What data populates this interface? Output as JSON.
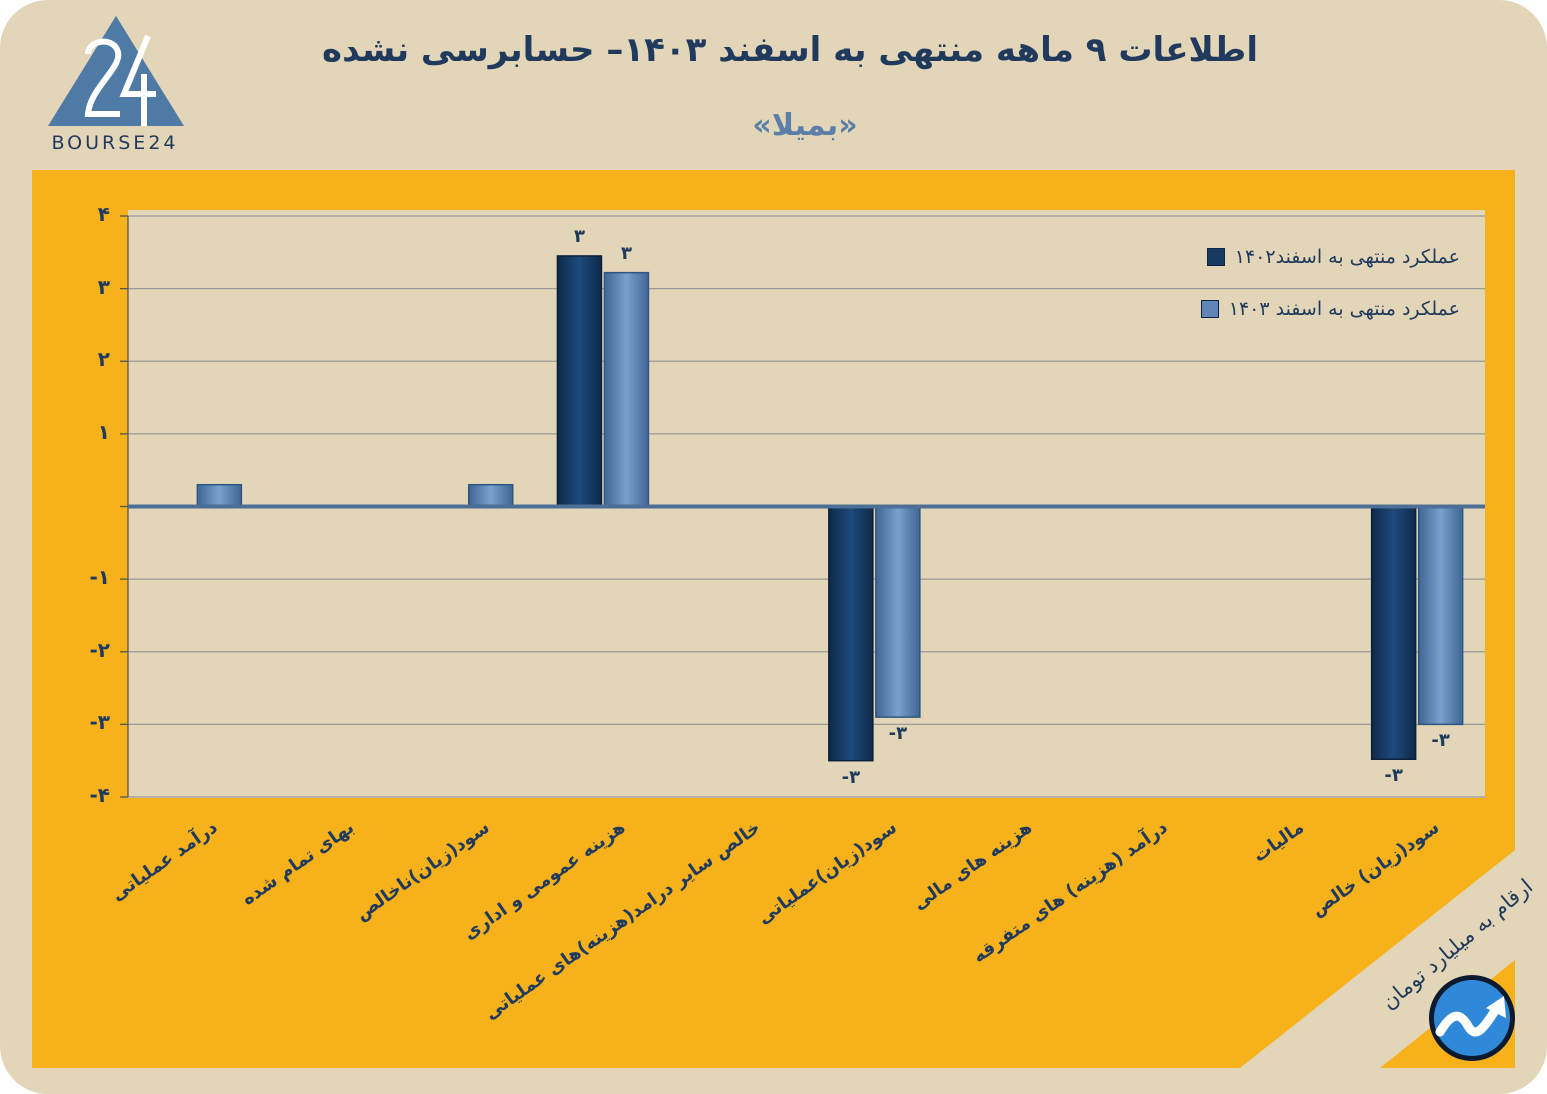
{
  "header": {
    "title": "اطلاعات ۹  ماهه منتهی به اسفند  ۱۴۰۳– حسابرسی نشده",
    "subtitle": "«بمیلا»",
    "logo_text": "BOURSE24"
  },
  "note": {
    "units": "ارقام به میلیارد تومان"
  },
  "colors": {
    "background": "#e2d5b8",
    "panel": "#f6b11b",
    "series_1402": "#173a63",
    "series_1403": "#5f86b7",
    "text": "#1f3a5c"
  },
  "chart_data": {
    "type": "bar",
    "title": "اطلاعات ۹  ماهه منتهی به اسفند  ۱۴۰۳– حسابرسی نشده",
    "ylim": [
      -4,
      4
    ],
    "y_ticks": [
      "۴",
      "۳",
      "۲",
      "۱",
      "",
      "-۱",
      "-۲",
      "-۳",
      "-۴"
    ],
    "y_tick_values": [
      4,
      3,
      2,
      1,
      0,
      -1,
      -2,
      -3,
      -4
    ],
    "grid": true,
    "legend_position": "top-right",
    "categories": [
      "درآمد عملیاتی",
      "بهای تمام شده",
      "سود(زیان)ناخالص",
      "هزینه عمومی و اداری",
      "خالص سایر درامد(هزینه)های عملیاتی",
      "سود(زیان)عملیاتی",
      "هزینه های مالی",
      "درآمد (هزینه) های متفرقه",
      "مالیات",
      "سود(زیان) خالص"
    ],
    "series": [
      {
        "name": "عملکرد منتهی به اسفند۱۴۰۲",
        "values": [
          0,
          0,
          0,
          3.45,
          0,
          -3.5,
          0,
          0,
          0,
          -3.48
        ],
        "labels": [
          "",
          "",
          "",
          "۳",
          "",
          "-۳",
          "",
          "",
          "",
          "-۳"
        ]
      },
      {
        "name": "عملکرد منتهی به اسفند ۱۴۰۳",
        "values": [
          0.3,
          0,
          0.3,
          3.22,
          0,
          -2.9,
          0,
          0,
          0,
          -3.0
        ],
        "labels": [
          "",
          "",
          "",
          "۳",
          "",
          "-۳",
          "",
          "",
          "",
          "-۳"
        ]
      }
    ]
  }
}
